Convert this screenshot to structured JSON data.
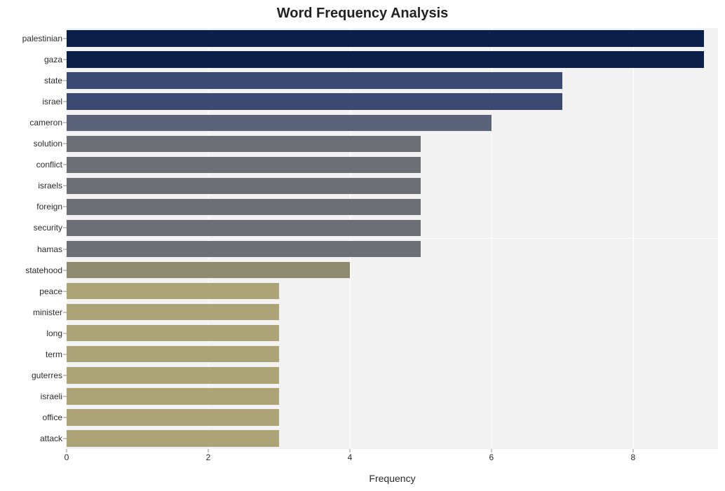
{
  "chart": {
    "type": "bar-horizontal",
    "title": "Word Frequency Analysis",
    "title_fontsize": 20,
    "title_color": "#222222",
    "xlabel": "Frequency",
    "xlabel_fontsize": 14,
    "label_color": "#2b2b2b",
    "ylabel_fontsize": 12,
    "xtick_fontsize": 12,
    "background_color": "#ffffff",
    "row_stripe_color": "#f2f2f2",
    "grid_color": "#ffffff",
    "xlim": [
      0,
      9.2
    ],
    "xticks": [
      0,
      2,
      4,
      6,
      8
    ],
    "bar_height_ratio": 0.78,
    "categories": [
      "palestinian",
      "gaza",
      "state",
      "israel",
      "cameron",
      "solution",
      "conflict",
      "israels",
      "foreign",
      "security",
      "hamas",
      "statehood",
      "peace",
      "minister",
      "long",
      "term",
      "guterres",
      "israeli",
      "office",
      "attack"
    ],
    "values": [
      9,
      9,
      7,
      7,
      6,
      5,
      5,
      5,
      5,
      5,
      5,
      4,
      3,
      3,
      3,
      3,
      3,
      3,
      3,
      3
    ],
    "bar_colors": [
      "#0b1f4b",
      "#0b1f4b",
      "#3b4a72",
      "#3b4a72",
      "#5b637a",
      "#6d6f77",
      "#6d6f77",
      "#6d6f77",
      "#6d6f77",
      "#6d6f77",
      "#6d6f77",
      "#8e8a70",
      "#aca476",
      "#aca476",
      "#aca476",
      "#aca476",
      "#aca476",
      "#aca476",
      "#aca476",
      "#aca476"
    ]
  }
}
